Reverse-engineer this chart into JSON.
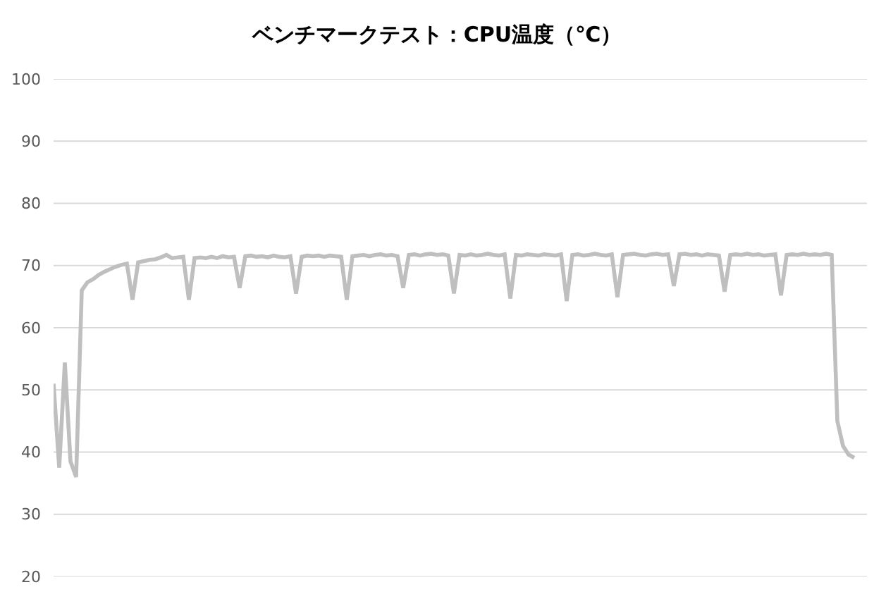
{
  "chart_data": {
    "type": "line",
    "title": "ベンチマークテスト：CPU温度（℃）",
    "categories": [
      null,
      null,
      null,
      null,
      null,
      null,
      null,
      null,
      null,
      null,
      null,
      null,
      null,
      null,
      null,
      null,
      null,
      null,
      null,
      null,
      null,
      null,
      null,
      null,
      null,
      null,
      null,
      null,
      null,
      null,
      null,
      null,
      null,
      null,
      null,
      null,
      null,
      null,
      null,
      null,
      null,
      null,
      null,
      null,
      null,
      null,
      null,
      null,
      null,
      null,
      null,
      null,
      null,
      null,
      null,
      null,
      null,
      null,
      null,
      null,
      null,
      null,
      null,
      null,
      null,
      null,
      null,
      null,
      null,
      null,
      null,
      null,
      null,
      null,
      null,
      null,
      null,
      null,
      null,
      null,
      null,
      null,
      null,
      null,
      null,
      null,
      null,
      null,
      null,
      null,
      null,
      null,
      null,
      null,
      null,
      null,
      null,
      null,
      null,
      null,
      null,
      null,
      null,
      null,
      null,
      null,
      null,
      null,
      null,
      null,
      null,
      null,
      null,
      null,
      null,
      null,
      null,
      null,
      null,
      null,
      null,
      null,
      null,
      null,
      null,
      null,
      null,
      null,
      null,
      null,
      null,
      null,
      null,
      null,
      null,
      null,
      null,
      null,
      null,
      null,
      null,
      null,
      null
    ],
    "series": [
      {
        "color": "#bfbfbf",
        "values": [
          51.0,
          37.5,
          54.4,
          38.5,
          36.0,
          66.0,
          67.3,
          67.8,
          68.5,
          69.0,
          69.4,
          69.8,
          70.1,
          70.3,
          64.5,
          70.5,
          70.7,
          70.9,
          71.0,
          71.3,
          71.7,
          71.2,
          71.3,
          71.4,
          64.5,
          71.2,
          71.3,
          71.2,
          71.4,
          71.2,
          71.5,
          71.3,
          71.4,
          66.4,
          71.5,
          71.6,
          71.4,
          71.5,
          71.3,
          71.6,
          71.4,
          71.3,
          71.5,
          65.5,
          71.4,
          71.6,
          71.5,
          71.6,
          71.4,
          71.6,
          71.5,
          71.4,
          64.5,
          71.5,
          71.6,
          71.7,
          71.5,
          71.7,
          71.8,
          71.6,
          71.7,
          71.5,
          66.4,
          71.7,
          71.8,
          71.6,
          71.8,
          71.9,
          71.7,
          71.8,
          71.6,
          65.5,
          71.7,
          71.6,
          71.8,
          71.6,
          71.7,
          71.9,
          71.7,
          71.6,
          71.8,
          64.7,
          71.7,
          71.6,
          71.8,
          71.7,
          71.6,
          71.8,
          71.7,
          71.6,
          71.8,
          64.3,
          71.7,
          71.8,
          71.6,
          71.7,
          71.9,
          71.7,
          71.6,
          71.8,
          64.9,
          71.7,
          71.8,
          71.9,
          71.7,
          71.6,
          71.8,
          71.9,
          71.7,
          71.8,
          66.7,
          71.8,
          71.9,
          71.7,
          71.8,
          71.6,
          71.8,
          71.7,
          71.6,
          65.8,
          71.7,
          71.8,
          71.7,
          71.9,
          71.7,
          71.8,
          71.6,
          71.7,
          71.8,
          65.2,
          71.7,
          71.8,
          71.7,
          71.9,
          71.7,
          71.8,
          71.7,
          71.9,
          71.7,
          45.0,
          41.0,
          39.6,
          39.1
        ]
      }
    ],
    "ylim": [
      20,
      100
    ],
    "yticks": [
      20,
      30,
      40,
      50,
      60,
      70,
      80,
      90,
      100
    ],
    "grid": "y",
    "tick_labels": "y",
    "line_style": "solid"
  }
}
